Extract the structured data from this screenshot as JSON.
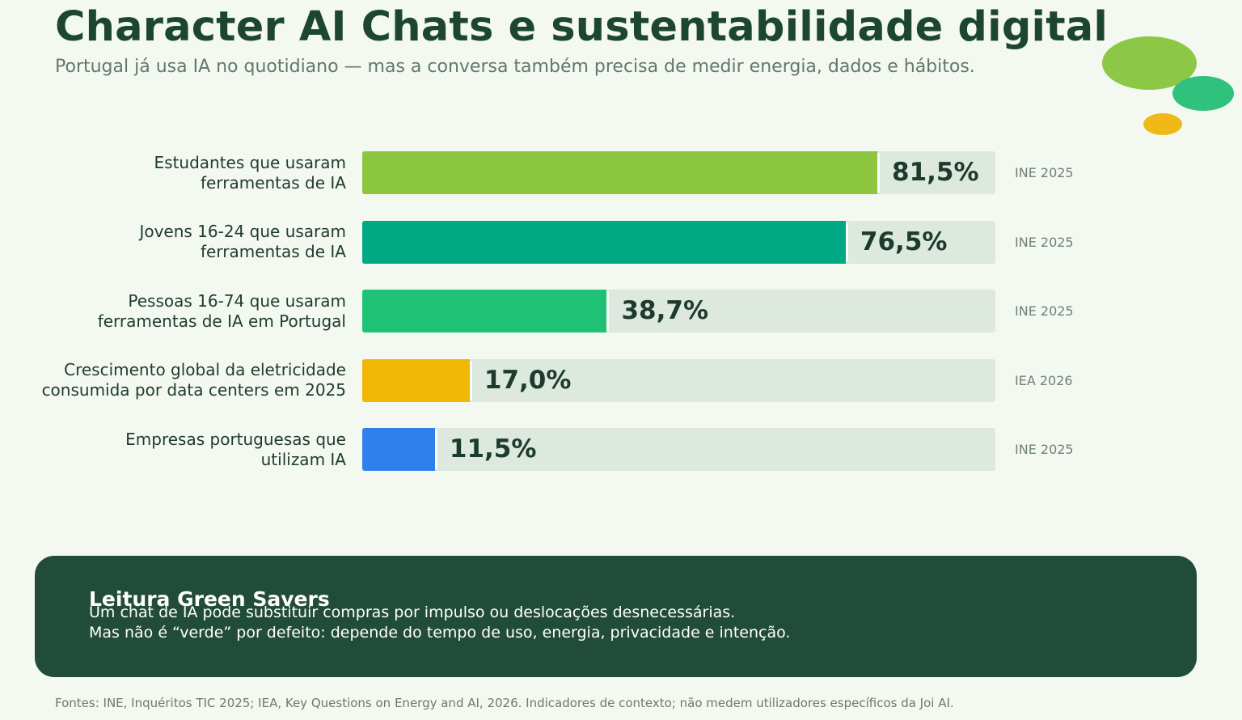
{
  "header": {
    "title": "Character AI Chats e sustentabilidade digital",
    "subtitle": "Portugal já usa IA no quotidiano — mas a conversa também precisa de medir energia, dados e hábitos."
  },
  "chart_data": {
    "type": "bar",
    "orientation": "horizontal",
    "xlim": [
      0,
      100
    ],
    "categories": [
      [
        "Estudantes que usaram",
        "ferramentas de IA"
      ],
      [
        "Jovens 16-24 que usaram",
        "ferramentas de IA"
      ],
      [
        "Pessoas 16-74 que usaram",
        "ferramentas de IA em Portugal"
      ],
      [
        "Crescimento global da eletricidade",
        "consumida por data centers em 2025"
      ],
      [
        "Empresas portuguesas que",
        "utilizam IA"
      ]
    ],
    "values": [
      81.5,
      76.5,
      38.7,
      17.0,
      11.5
    ],
    "value_labels": [
      "81,5%",
      "76,5%",
      "38,7%",
      "17,0%",
      "11,5%"
    ],
    "sources": [
      "INE 2025",
      "INE 2025",
      "INE 2025",
      "IEA 2026",
      "INE 2025"
    ],
    "colors": [
      "#8cc63f",
      "#00a884",
      "#1fc275",
      "#f2b705",
      "#2f80ed"
    ],
    "track_color": "#dde8de",
    "grid": false
  },
  "panel": {
    "title": "Leitura Green Savers",
    "lines": [
      "Um chat de IA pode substituir compras por impulso ou deslocações desnecessárias.",
      "Mas não é “verde” por defeito: depende do tempo de uso, energia, privacidade e intenção."
    ]
  },
  "footer": "Fontes: INE, Inquéritos TIC 2025; IEA, Key Questions on Energy and AI, 2026. Indicadores de contexto; não medem utilizadores específicos da Joi AI."
}
